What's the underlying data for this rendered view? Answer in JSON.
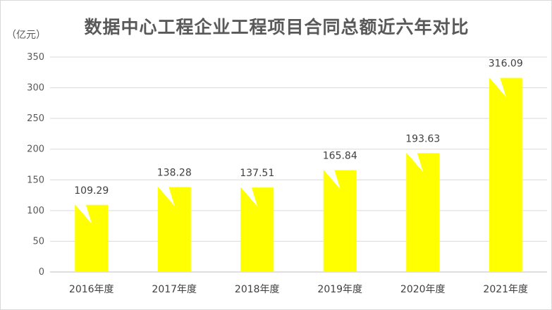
{
  "chart_data": {
    "type": "bar",
    "title": "数据中心工程企业工程项目合同总额近六年对比",
    "unit": "（亿元）",
    "categories": [
      "2016年度",
      "2017年度",
      "2018年度",
      "2019年度",
      "2020年度",
      "2021年度"
    ],
    "values": [
      109.29,
      138.28,
      137.51,
      165.84,
      193.63,
      316.09
    ],
    "value_labels": [
      "109.29",
      "138.28",
      "137.51",
      "165.84",
      "193.63",
      "316.09"
    ],
    "yticks": [
      "0",
      "50",
      "100",
      "150",
      "200",
      "250",
      "300",
      "350"
    ],
    "ylim": [
      0,
      350
    ],
    "grid": true,
    "legend": "none",
    "colors": {
      "bar": "#FFFF00",
      "grid": "#d9d9d9",
      "text": "#595959"
    }
  }
}
